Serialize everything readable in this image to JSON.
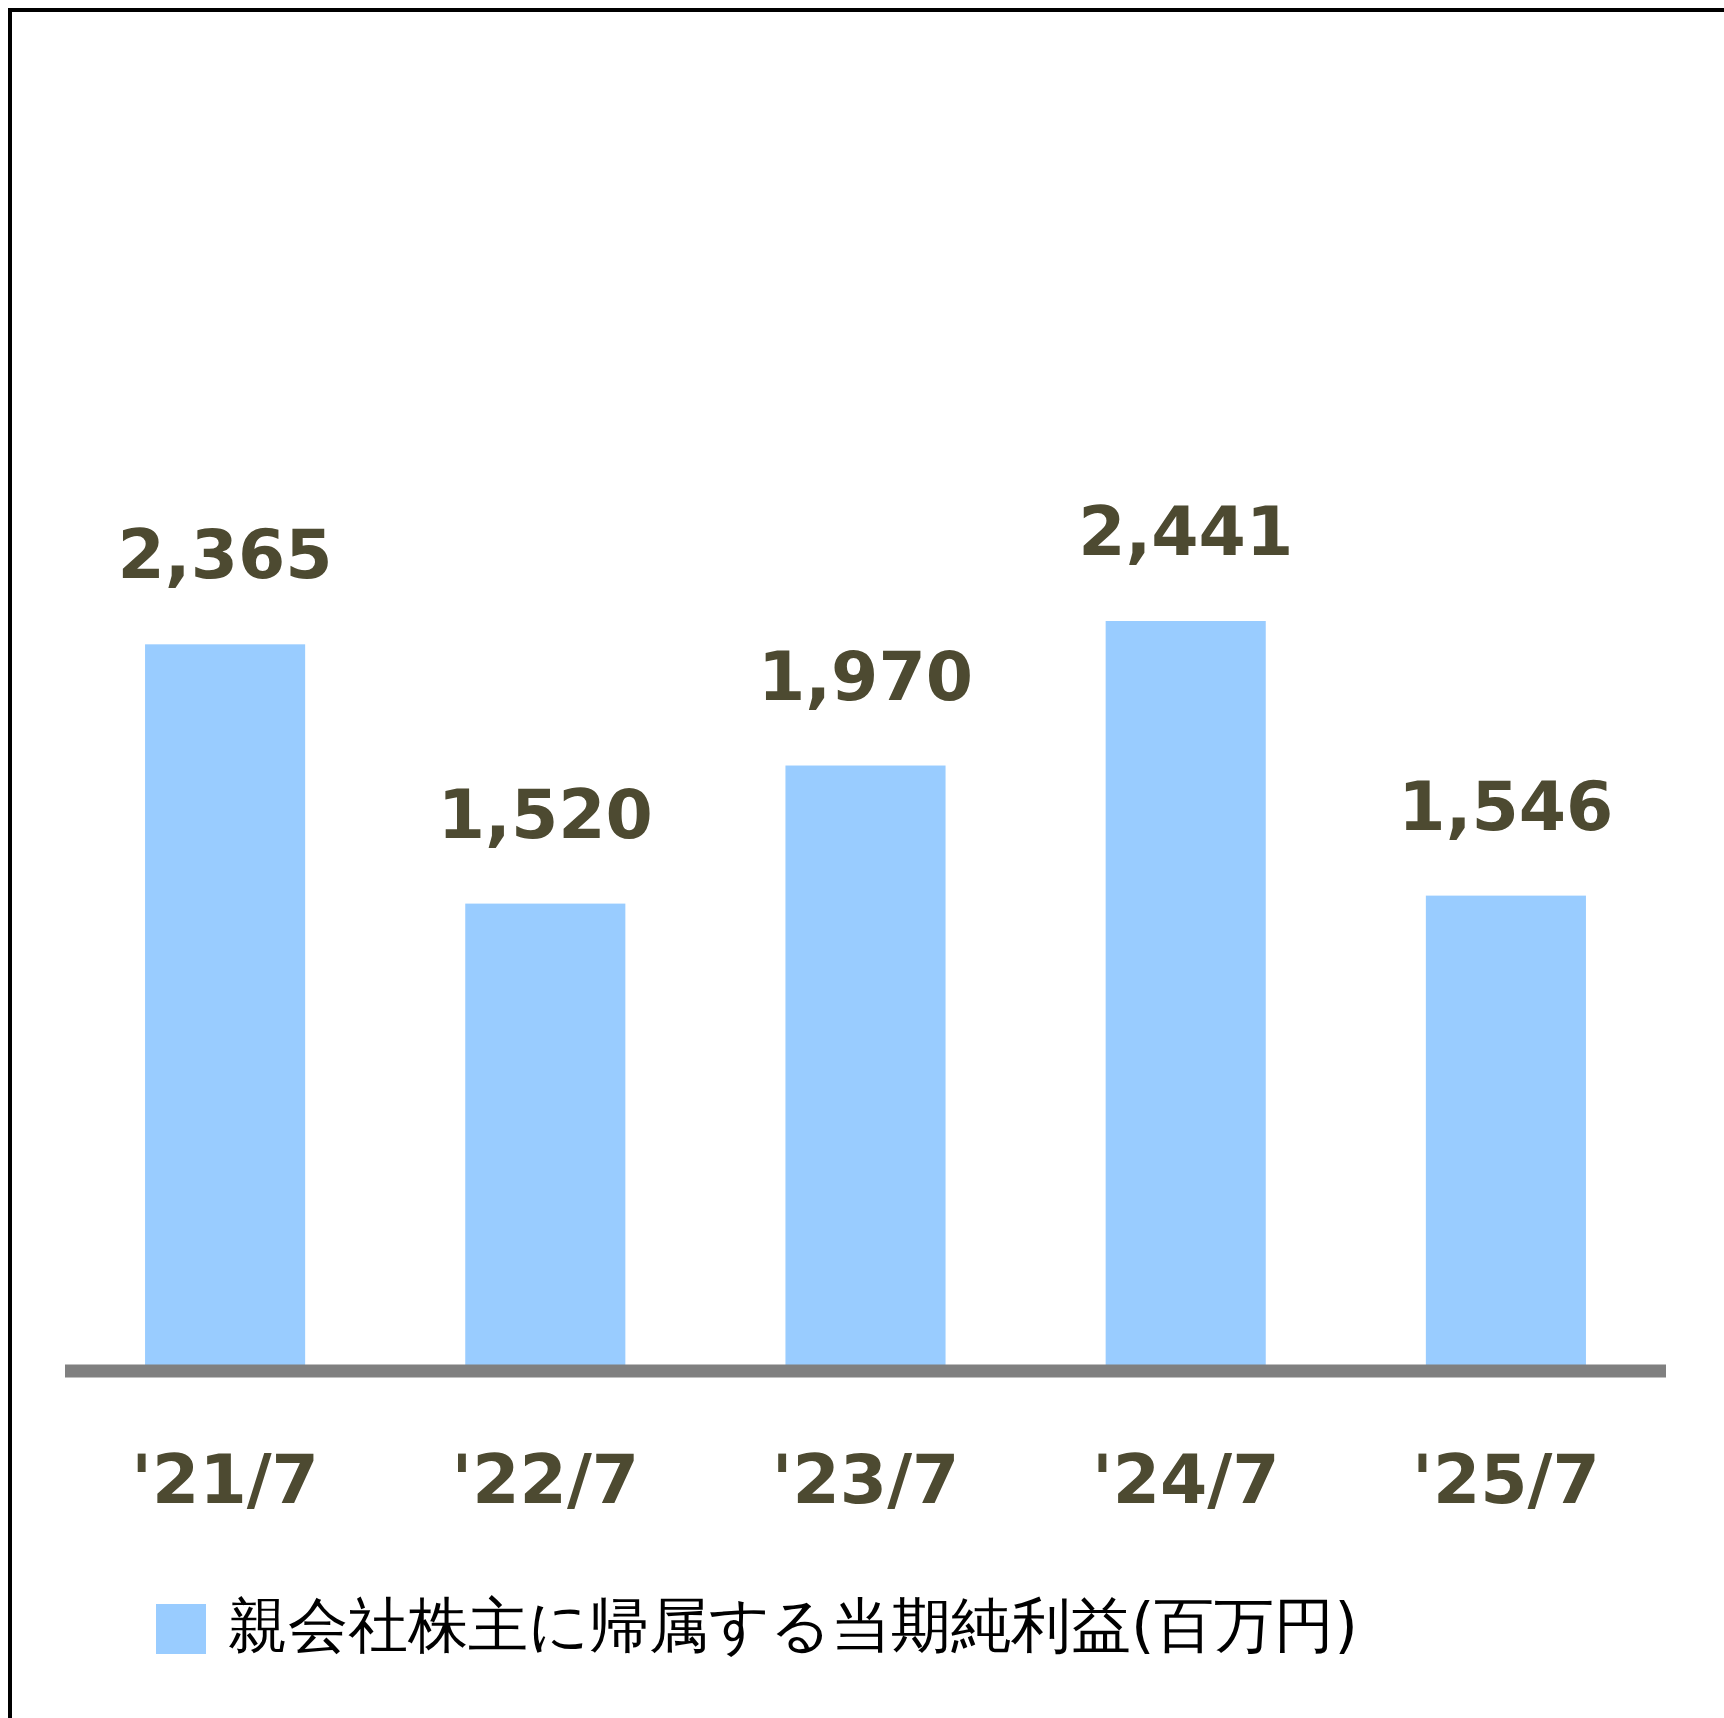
{
  "chart_data": {
    "type": "bar",
    "categories": [
      "'21/7",
      "'22/7",
      "'23/7",
      "'24/7",
      "'25/7"
    ],
    "series": [
      {
        "name": "親会社株主に帰属する当期純利益(百万円)",
        "color": "#99ccff",
        "values": [
          2365,
          1520,
          1970,
          2441,
          1546
        ],
        "value_labels": [
          "2,365",
          "1,520",
          "1,970",
          "2,441",
          "1,546"
        ]
      }
    ],
    "legend": "bottom"
  }
}
